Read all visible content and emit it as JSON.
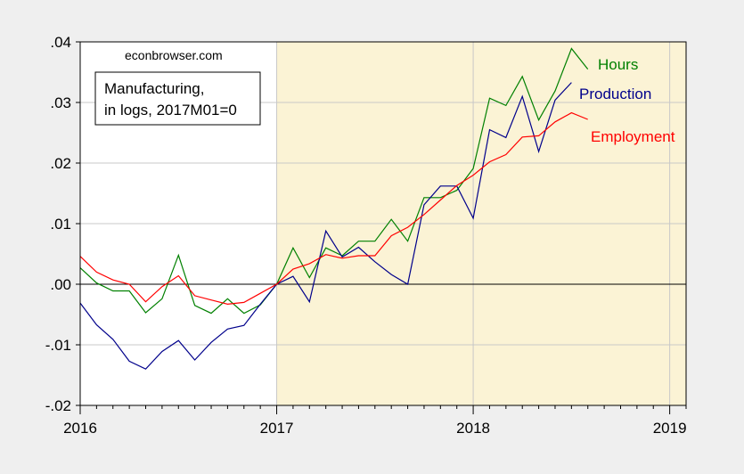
{
  "chart_data": {
    "type": "line",
    "watermark": "econbrowser.com",
    "annotation_lines": [
      "Manufacturing,",
      "in logs, 2017M01=0"
    ],
    "x_tick_labels": [
      "2016",
      "2017",
      "2018",
      "2019"
    ],
    "y_tick_labels": [
      ".04",
      ".03",
      ".02",
      ".01",
      ".00",
      "-.01",
      "-.02"
    ],
    "ylim": [
      -0.02,
      0.04
    ],
    "xlim": [
      "2016-01",
      "2019-02"
    ],
    "grid": true,
    "shaded_region": {
      "start": "2017-01",
      "end": "2019-02",
      "color": "#fbf3d5"
    },
    "colors": {
      "background": "#efefef",
      "plot_bg": "#ffffff",
      "grid": "#c8c8c8",
      "zero_line": "#000000"
    },
    "x": [
      "2016-01",
      "2016-02",
      "2016-03",
      "2016-04",
      "2016-05",
      "2016-06",
      "2016-07",
      "2016-08",
      "2016-09",
      "2016-10",
      "2016-11",
      "2016-12",
      "2017-01",
      "2017-02",
      "2017-03",
      "2017-04",
      "2017-05",
      "2017-06",
      "2017-07",
      "2017-08",
      "2017-09",
      "2017-10",
      "2017-11",
      "2017-12",
      "2018-01",
      "2018-02",
      "2018-03",
      "2018-04",
      "2018-05",
      "2018-06",
      "2018-07",
      "2018-08"
    ],
    "series": [
      {
        "name": "Hours",
        "color": "#008000",
        "values": [
          0.0027,
          0.0002,
          -0.0011,
          -0.0011,
          -0.0047,
          -0.0024,
          0.0048,
          -0.0035,
          -0.0048,
          -0.0024,
          -0.0048,
          -0.0034,
          0.0,
          0.006,
          0.0011,
          0.006,
          0.0047,
          0.0071,
          0.0071,
          0.0107,
          0.0071,
          0.0143,
          0.0143,
          0.0155,
          0.0191,
          0.0307,
          0.0295,
          0.0343,
          0.0271,
          0.0319,
          0.0389,
          0.0355
        ]
      },
      {
        "name": "Production",
        "color": "#00008b",
        "values": [
          -0.0031,
          -0.0067,
          -0.0091,
          -0.0127,
          -0.014,
          -0.0111,
          -0.0093,
          -0.0125,
          -0.0096,
          -0.0074,
          -0.0068,
          -0.0033,
          0.0,
          0.0013,
          -0.0029,
          0.0088,
          0.0045,
          0.0061,
          0.0037,
          0.0016,
          0.0,
          0.0131,
          0.0162,
          0.0162,
          0.0109,
          0.0255,
          0.0242,
          0.031,
          0.0219,
          0.0304,
          0.0333,
          null
        ]
      },
      {
        "name": "Employment",
        "color": "#ff0000",
        "values": [
          0.0046,
          0.002,
          0.0007,
          0.0,
          -0.0029,
          -0.0004,
          0.0014,
          -0.0019,
          -0.0026,
          -0.0033,
          -0.003,
          -0.0015,
          0.0,
          0.0025,
          0.0034,
          0.0049,
          0.0043,
          0.0047,
          0.0047,
          0.008,
          0.0094,
          0.0115,
          0.0139,
          0.0163,
          0.018,
          0.0202,
          0.0214,
          0.0243,
          0.0245,
          0.0268,
          0.0283,
          0.0272
        ]
      }
    ]
  }
}
